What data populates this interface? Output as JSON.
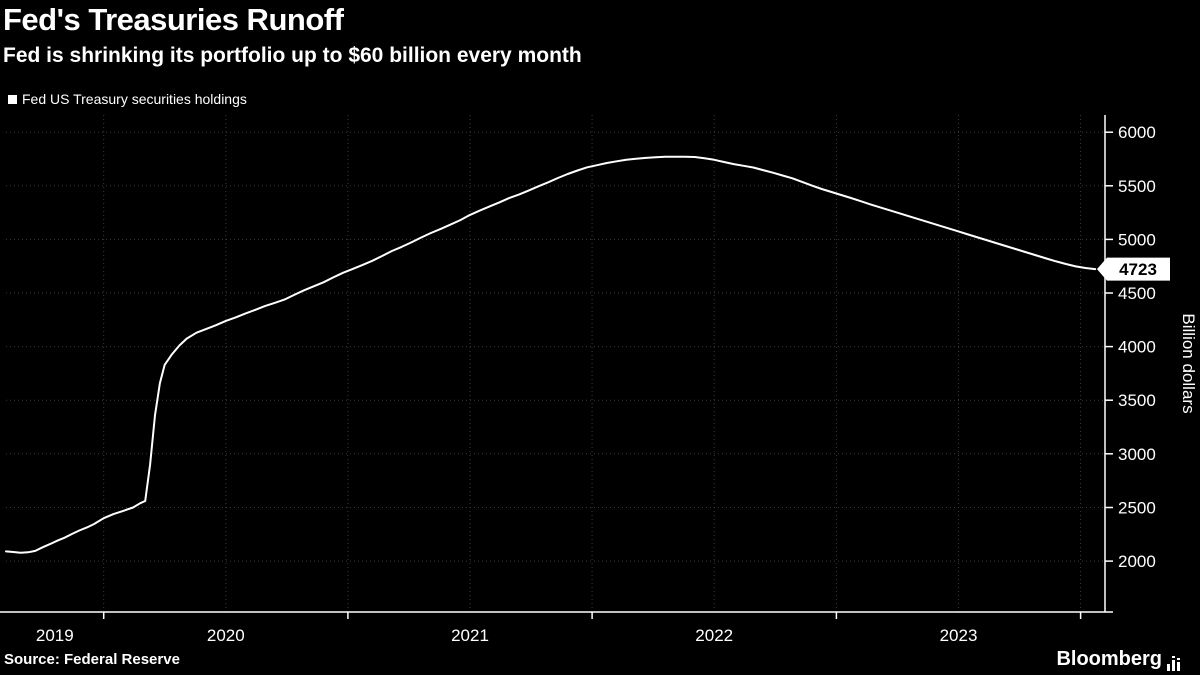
{
  "header": {
    "title": "Fed's Treasuries Runoff",
    "subtitle": "Fed is shrinking its portfolio up to $60 billion every month"
  },
  "legend": {
    "label": "Fed US Treasury securities holdings",
    "swatch_color": "#ffffff"
  },
  "footer": {
    "source": "Source: Federal Reserve",
    "brand": "Bloomberg"
  },
  "chart_data": {
    "type": "line",
    "title": "Fed's Treasuries Runoff",
    "subtitle": "Fed is shrinking its portfolio up to $60 billion every month",
    "xlabel": "",
    "ylabel": "Billion dollars",
    "legend": [
      "Fed US Treasury securities holdings"
    ],
    "legend_position": "top-left",
    "grid": "dotted",
    "background": "#000000",
    "line_color": "#ffffff",
    "axis_color": "#ffffff",
    "grid_color": "#3b3b3b",
    "ylim": [
      1525,
      6160
    ],
    "xlim": [
      2019.6,
      2024.1
    ],
    "y_ticks": [
      2000,
      2500,
      3000,
      3500,
      4000,
      4500,
      5000,
      5500,
      6000
    ],
    "x_ticks": [
      2019,
      2020,
      2021,
      2022,
      2023
    ],
    "last_value": 4723,
    "last_value_label": "4723",
    "series": [
      {
        "name": "Fed US Treasury securities holdings",
        "color": "#ffffff",
        "points": [
          [
            2019.6,
            2090
          ],
          [
            2019.63,
            2085
          ],
          [
            2019.66,
            2078
          ],
          [
            2019.69,
            2082
          ],
          [
            2019.72,
            2095
          ],
          [
            2019.75,
            2128
          ],
          [
            2019.78,
            2158
          ],
          [
            2019.81,
            2190
          ],
          [
            2019.84,
            2218
          ],
          [
            2019.87,
            2252
          ],
          [
            2019.9,
            2285
          ],
          [
            2019.93,
            2312
          ],
          [
            2019.96,
            2345
          ],
          [
            2020.0,
            2400
          ],
          [
            2020.04,
            2438
          ],
          [
            2020.08,
            2468
          ],
          [
            2020.12,
            2500
          ],
          [
            2020.15,
            2540
          ],
          [
            2020.17,
            2560
          ],
          [
            2020.19,
            2900
          ],
          [
            2020.21,
            3360
          ],
          [
            2020.23,
            3660
          ],
          [
            2020.25,
            3830
          ],
          [
            2020.28,
            3930
          ],
          [
            2020.31,
            4010
          ],
          [
            2020.34,
            4075
          ],
          [
            2020.38,
            4130
          ],
          [
            2020.42,
            4165
          ],
          [
            2020.46,
            4200
          ],
          [
            2020.5,
            4240
          ],
          [
            2020.54,
            4272
          ],
          [
            2020.58,
            4308
          ],
          [
            2020.62,
            4342
          ],
          [
            2020.66,
            4378
          ],
          [
            2020.7,
            4408
          ],
          [
            2020.74,
            4438
          ],
          [
            2020.78,
            4482
          ],
          [
            2020.82,
            4525
          ],
          [
            2020.86,
            4562
          ],
          [
            2020.9,
            4600
          ],
          [
            2020.94,
            4645
          ],
          [
            2020.98,
            4688
          ],
          [
            2021.02,
            4725
          ],
          [
            2021.06,
            4762
          ],
          [
            2021.1,
            4800
          ],
          [
            2021.14,
            4845
          ],
          [
            2021.18,
            4892
          ],
          [
            2021.22,
            4930
          ],
          [
            2021.26,
            4972
          ],
          [
            2021.3,
            5018
          ],
          [
            2021.34,
            5060
          ],
          [
            2021.38,
            5098
          ],
          [
            2021.42,
            5138
          ],
          [
            2021.46,
            5180
          ],
          [
            2021.5,
            5228
          ],
          [
            2021.54,
            5268
          ],
          [
            2021.58,
            5308
          ],
          [
            2021.62,
            5345
          ],
          [
            2021.66,
            5385
          ],
          [
            2021.7,
            5418
          ],
          [
            2021.74,
            5455
          ],
          [
            2021.78,
            5495
          ],
          [
            2021.82,
            5532
          ],
          [
            2021.86,
            5572
          ],
          [
            2021.9,
            5610
          ],
          [
            2021.94,
            5642
          ],
          [
            2021.98,
            5672
          ],
          [
            2022.02,
            5692
          ],
          [
            2022.06,
            5712
          ],
          [
            2022.1,
            5728
          ],
          [
            2022.14,
            5742
          ],
          [
            2022.18,
            5752
          ],
          [
            2022.22,
            5760
          ],
          [
            2022.26,
            5766
          ],
          [
            2022.3,
            5770
          ],
          [
            2022.34,
            5771
          ],
          [
            2022.38,
            5770
          ],
          [
            2022.42,
            5768
          ],
          [
            2022.46,
            5756
          ],
          [
            2022.5,
            5742
          ],
          [
            2022.54,
            5722
          ],
          [
            2022.58,
            5702
          ],
          [
            2022.62,
            5686
          ],
          [
            2022.66,
            5670
          ],
          [
            2022.7,
            5646
          ],
          [
            2022.74,
            5622
          ],
          [
            2022.78,
            5596
          ],
          [
            2022.82,
            5570
          ],
          [
            2022.86,
            5536
          ],
          [
            2022.9,
            5502
          ],
          [
            2022.94,
            5470
          ],
          [
            2022.98,
            5442
          ],
          [
            2023.02,
            5414
          ],
          [
            2023.06,
            5386
          ],
          [
            2023.1,
            5356
          ],
          [
            2023.14,
            5326
          ],
          [
            2023.18,
            5298
          ],
          [
            2023.22,
            5270
          ],
          [
            2023.26,
            5242
          ],
          [
            2023.3,
            5214
          ],
          [
            2023.34,
            5186
          ],
          [
            2023.38,
            5158
          ],
          [
            2023.42,
            5130
          ],
          [
            2023.46,
            5102
          ],
          [
            2023.5,
            5074
          ],
          [
            2023.54,
            5046
          ],
          [
            2023.58,
            5018
          ],
          [
            2023.62,
            4990
          ],
          [
            2023.66,
            4962
          ],
          [
            2023.7,
            4934
          ],
          [
            2023.74,
            4906
          ],
          [
            2023.78,
            4878
          ],
          [
            2023.82,
            4850
          ],
          [
            2023.86,
            4822
          ],
          [
            2023.9,
            4795
          ],
          [
            2023.94,
            4770
          ],
          [
            2023.98,
            4748
          ],
          [
            2024.02,
            4733
          ],
          [
            2024.06,
            4723
          ]
        ]
      }
    ]
  }
}
